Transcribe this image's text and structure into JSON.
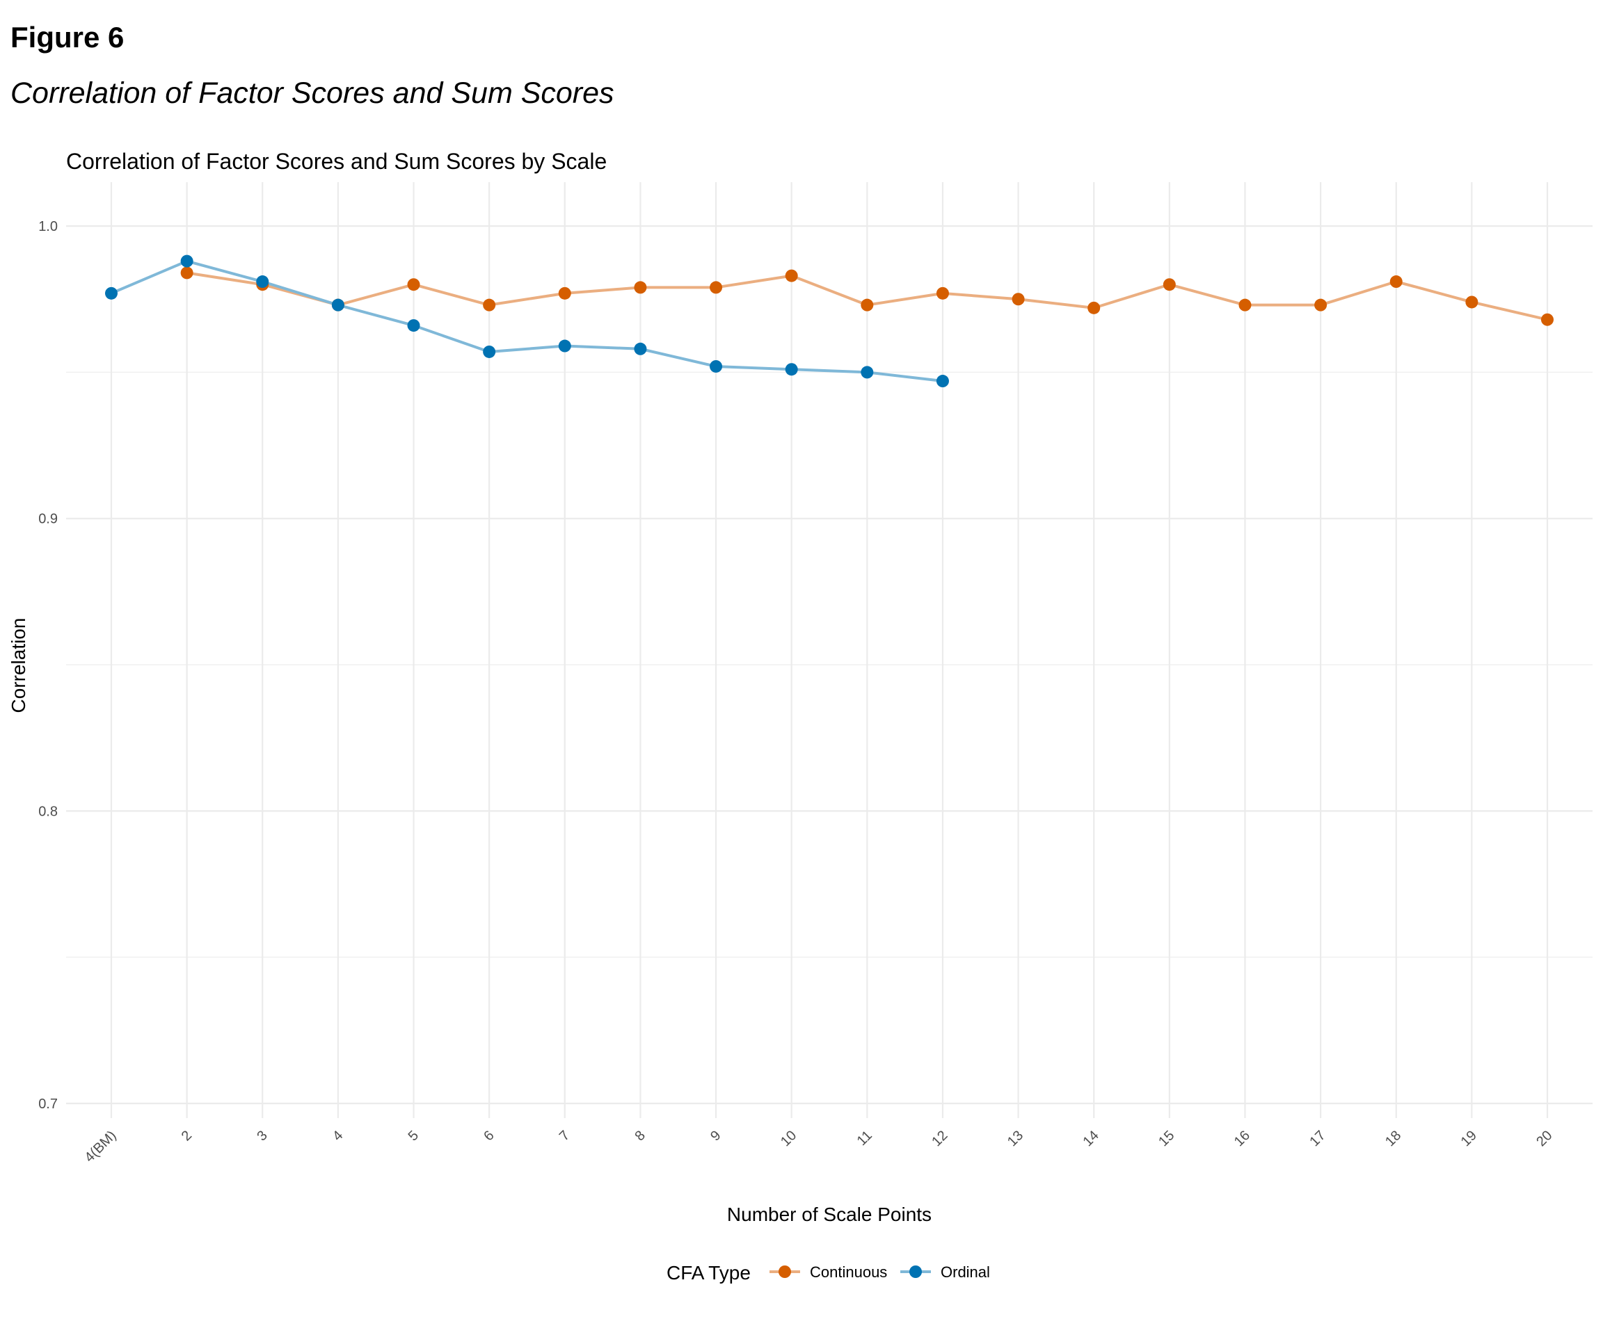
{
  "figure": {
    "label": "Figure 6",
    "subtitle": "Correlation of Factor Scores and Sum Scores"
  },
  "chart_data": {
    "type": "line",
    "title": "Correlation of Factor Scores and Sum Scores by Scale",
    "xlabel": "Number of Scale Points",
    "ylabel": "Correlation",
    "categories": [
      "4(BM)",
      "2",
      "3",
      "4",
      "5",
      "6",
      "7",
      "8",
      "9",
      "10",
      "11",
      "12",
      "13",
      "14",
      "15",
      "16",
      "17",
      "18",
      "19",
      "20"
    ],
    "ylim": [
      0.695,
      1.015
    ],
    "yticks": [
      0.7,
      0.8,
      0.9,
      1.0
    ],
    "ytick_labels": [
      "0.7",
      "0.8",
      "0.9",
      "1.0"
    ],
    "grid": true,
    "legend": {
      "title": "CFA Type",
      "placement": "bottom"
    },
    "series": [
      {
        "name": "Continuous",
        "color": "#D55E00",
        "line_color": "#EBAE80",
        "values": [
          null,
          0.984,
          0.98,
          0.973,
          0.98,
          0.973,
          0.977,
          0.979,
          0.979,
          0.983,
          0.973,
          0.977,
          0.975,
          0.972,
          0.98,
          0.973,
          0.973,
          0.981,
          0.974,
          0.968
        ]
      },
      {
        "name": "Ordinal",
        "color": "#0072B2",
        "line_color": "#7FB8D8",
        "values": [
          0.977,
          0.988,
          0.981,
          0.973,
          0.966,
          0.957,
          0.959,
          0.958,
          0.952,
          0.951,
          0.95,
          0.947,
          null,
          null,
          null,
          null,
          null,
          null,
          null,
          null
        ]
      }
    ]
  }
}
